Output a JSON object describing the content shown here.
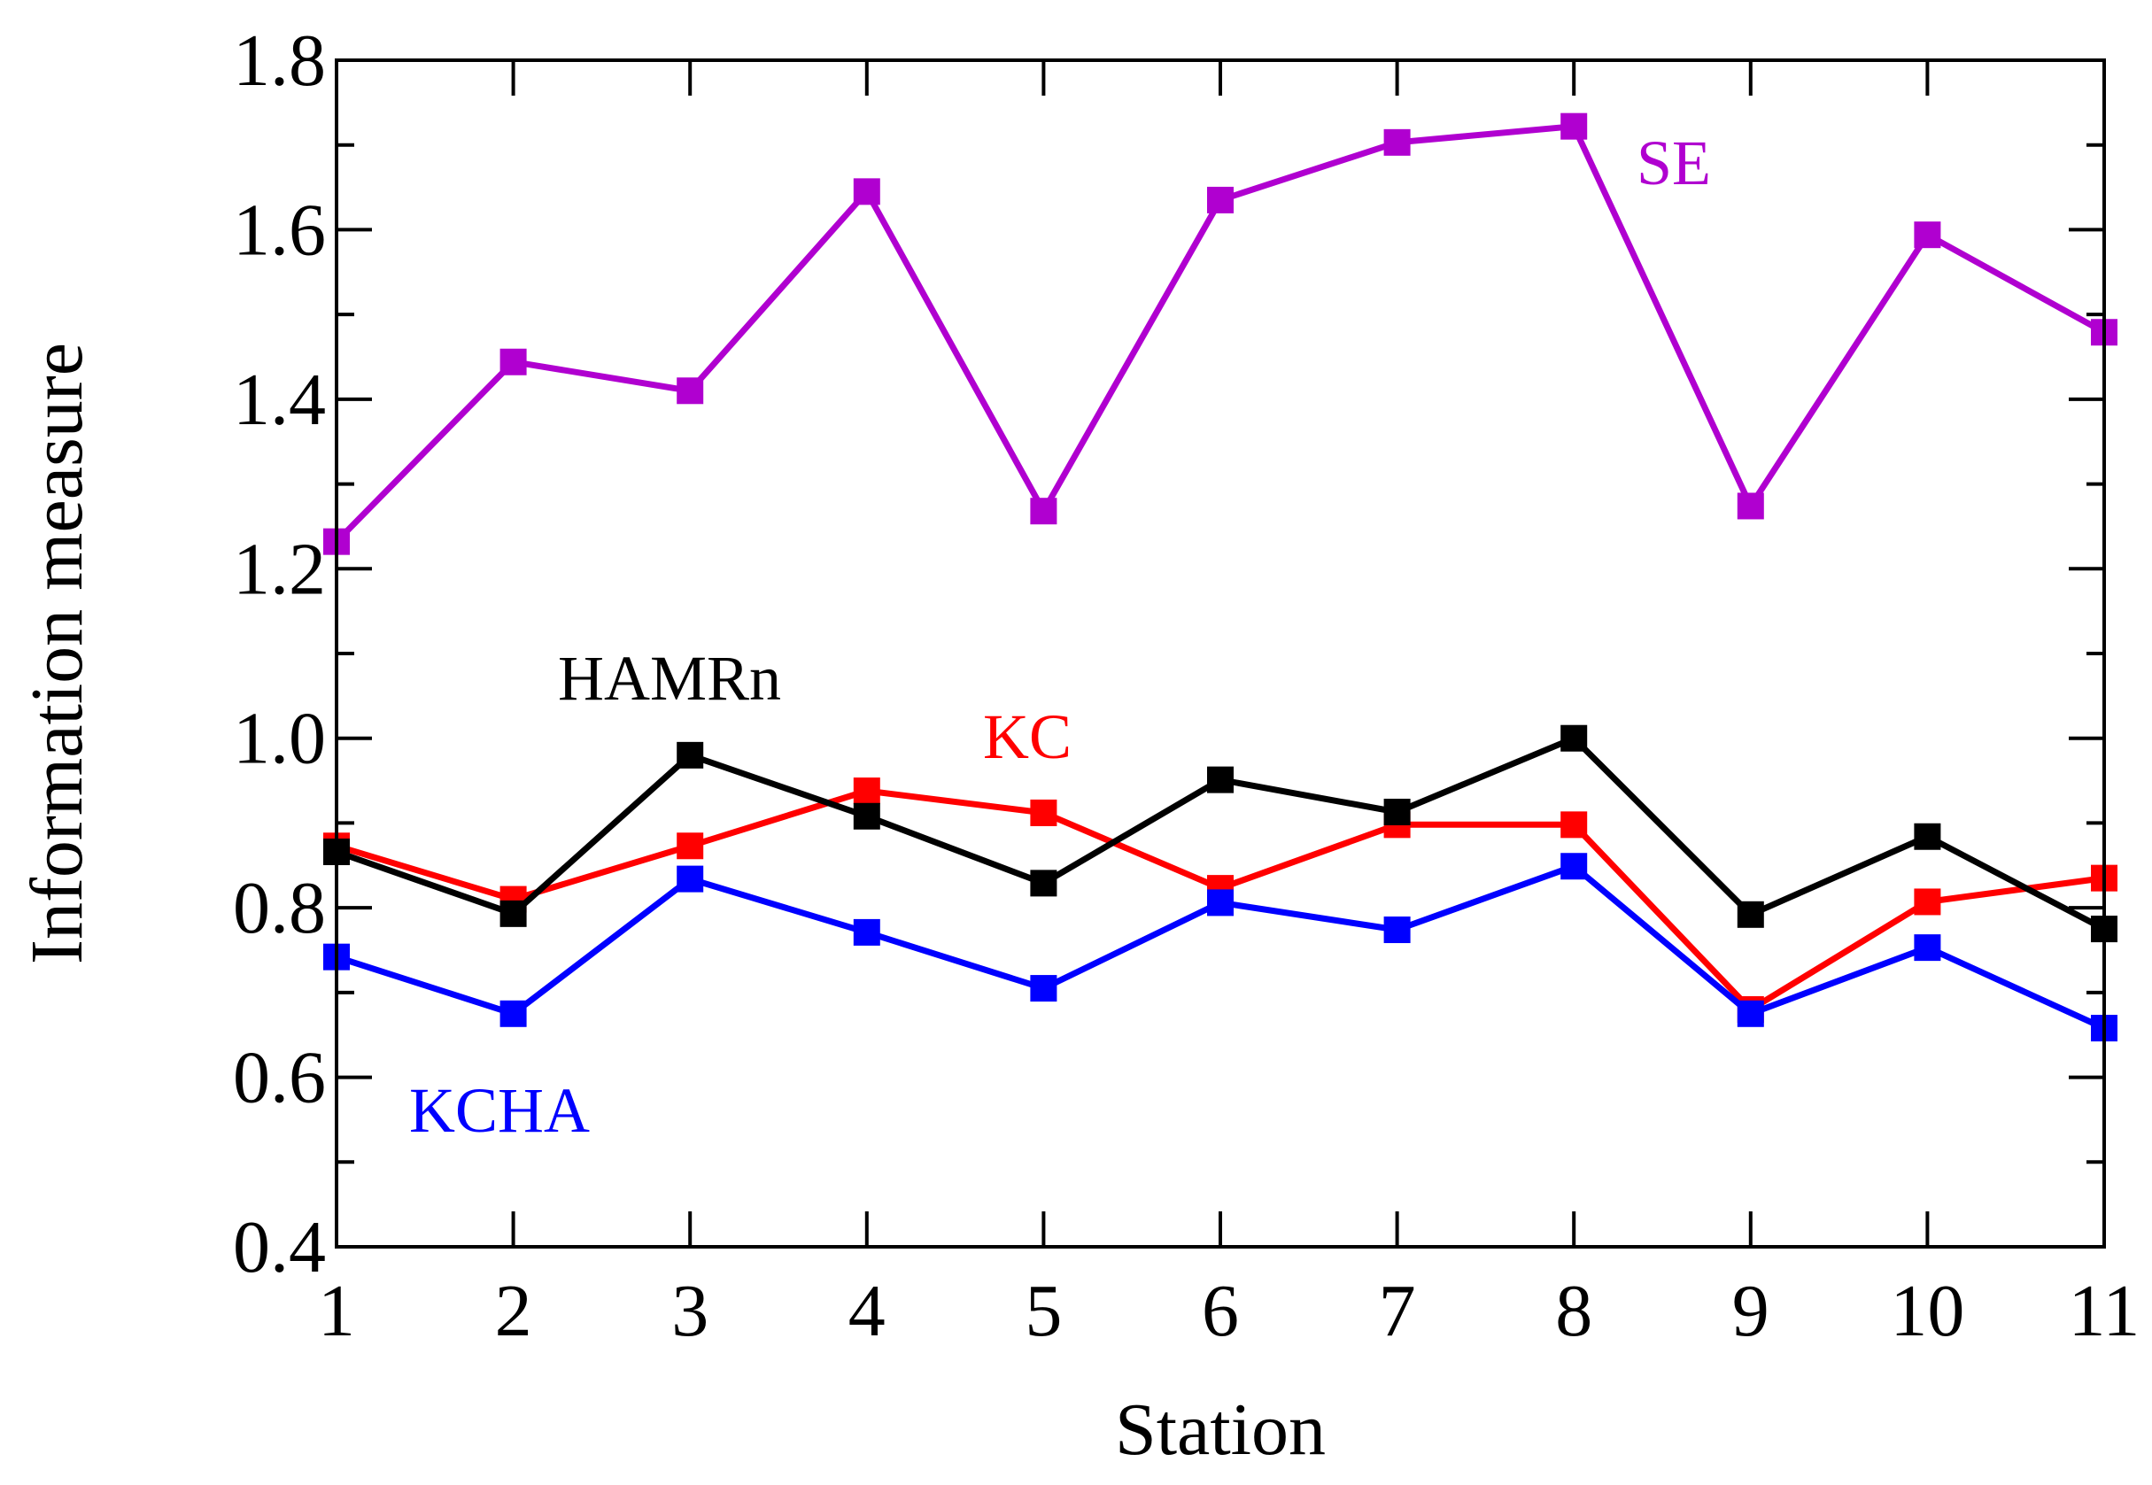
{
  "chart_data": {
    "type": "line",
    "x": [
      1,
      2,
      3,
      4,
      5,
      6,
      7,
      8,
      9,
      10,
      11
    ],
    "xlabel": "Station",
    "ylabel": "Information measure",
    "xlim": [
      1,
      11
    ],
    "ylim": [
      0.4,
      1.8
    ],
    "x_ticks": [
      "1",
      "2",
      "3",
      "4",
      "5",
      "6",
      "7",
      "8",
      "9",
      "10",
      "11"
    ],
    "y_ticks": [
      "0.4",
      "0.6",
      "0.8",
      "1.0",
      "1.2",
      "1.4",
      "1.6",
      "1.8"
    ],
    "y_tick_values": [
      0.4,
      0.6,
      0.8,
      1.0,
      1.2,
      1.4,
      1.6,
      1.8
    ],
    "grid": false,
    "legend": "none",
    "series": [
      {
        "name": "SE",
        "color": "#b000d0",
        "values": [
          1.232,
          1.444,
          1.41,
          1.645,
          1.268,
          1.635,
          1.703,
          1.722,
          1.274,
          1.594,
          1.479
        ],
        "label": "SE"
      },
      {
        "name": "KC",
        "color": "#ff0000",
        "values": [
          0.873,
          0.81,
          0.873,
          0.938,
          0.912,
          0.823,
          0.898,
          0.898,
          0.68,
          0.807,
          0.835
        ],
        "label": "KC"
      },
      {
        "name": "HAMRn",
        "color": "#000000",
        "values": [
          0.866,
          0.793,
          0.98,
          0.908,
          0.829,
          0.951,
          0.913,
          1.0,
          0.792,
          0.884,
          0.775
        ],
        "label": "HAMRn"
      },
      {
        "name": "KCHA",
        "color": "#0000ff",
        "values": [
          0.742,
          0.675,
          0.834,
          0.771,
          0.705,
          0.806,
          0.774,
          0.849,
          0.675,
          0.753,
          0.658
        ],
        "label": "KCHA"
      }
    ],
    "annotations": [
      {
        "text": "SE",
        "series": "SE"
      },
      {
        "text": "HAMRn",
        "series": "HAMRn"
      },
      {
        "text": "KC",
        "series": "KC"
      },
      {
        "text": "KCHA",
        "series": "KCHA"
      }
    ]
  }
}
